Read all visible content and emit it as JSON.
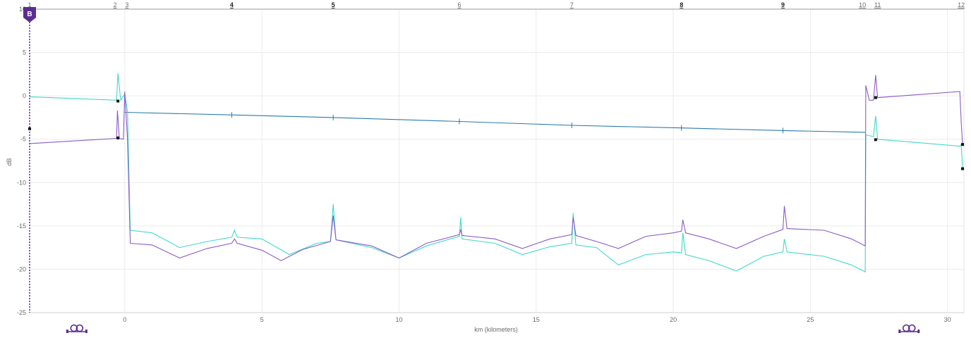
{
  "chart_data": {
    "type": "line",
    "title": "",
    "xlabel": "km (kilometers)",
    "ylabel": "dB",
    "xlim": [
      -3.47,
      30.6
    ],
    "ylim": [
      -25,
      10
    ],
    "x_ticks": [
      0,
      5,
      10,
      15,
      20,
      25,
      30
    ],
    "y_ticks": [
      10,
      5,
      0,
      -5,
      -10,
      -15,
      -20,
      -25
    ],
    "grid": true,
    "colors": {
      "series_a": "#3fd9c8",
      "series_b": "#8a5cc8",
      "series_c": "#2a79a8",
      "marker": "#5b2d91"
    },
    "cursor": {
      "label": "B",
      "x": -3.47
    },
    "events": [
      {
        "label": "1",
        "x": -3.47,
        "bold": false
      },
      {
        "label": "2",
        "x": -0.25,
        "bold": false
      },
      {
        "label": "3",
        "x": 0.0,
        "bold": false
      },
      {
        "label": "4",
        "x": 3.9,
        "bold": true
      },
      {
        "label": "5",
        "x": 7.6,
        "bold": true
      },
      {
        "label": "6",
        "x": 12.2,
        "bold": false
      },
      {
        "label": "7",
        "x": 16.3,
        "bold": false
      },
      {
        "label": "8",
        "x": 20.3,
        "bold": true
      },
      {
        "label": "9",
        "x": 24.0,
        "bold": true
      },
      {
        "label": "10",
        "x": 27.0,
        "bold": false
      },
      {
        "label": "11",
        "x": 27.35,
        "bold": false
      },
      {
        "label": "12",
        "x": 30.5,
        "bold": false
      }
    ],
    "connectors": [
      {
        "x": -1.75,
        "icon": "reel-icon"
      },
      {
        "x": 28.6,
        "icon": "reel-icon"
      }
    ],
    "series": [
      {
        "key": "series_c",
        "points": [
          [
            0,
            -1.9
          ],
          [
            3.9,
            -2.2
          ],
          [
            7.6,
            -2.5
          ],
          [
            12.2,
            -2.95
          ],
          [
            16.3,
            -3.4
          ],
          [
            20.3,
            -3.7
          ],
          [
            24.0,
            -4.0
          ],
          [
            27.0,
            -4.2
          ]
        ],
        "ticks": [
          3.9,
          7.6,
          12.2,
          16.3,
          20.3,
          24.0
        ]
      },
      {
        "key": "series_a",
        "points": [
          [
            -3.47,
            -0.1
          ],
          [
            -0.3,
            -0.5
          ],
          [
            -0.25,
            2.6
          ],
          [
            -0.15,
            -0.5
          ],
          [
            0.0,
            0.2
          ],
          [
            0.1,
            -1.8
          ],
          [
            0.2,
            -15.5
          ],
          [
            1.0,
            -15.8
          ],
          [
            2.0,
            -17.5
          ],
          [
            3.0,
            -16.8
          ],
          [
            3.9,
            -16.3
          ],
          [
            4.0,
            -15.5
          ],
          [
            4.1,
            -16.3
          ],
          [
            5.0,
            -16.5
          ],
          [
            6.0,
            -18.3
          ],
          [
            7.0,
            -17.0
          ],
          [
            7.5,
            -16.8
          ],
          [
            7.6,
            -12.5
          ],
          [
            7.7,
            -16.6
          ],
          [
            9.0,
            -17.5
          ],
          [
            10.0,
            -18.7
          ],
          [
            11.0,
            -17.3
          ],
          [
            12.2,
            -16.2
          ],
          [
            12.25,
            -14.0
          ],
          [
            12.3,
            -16.5
          ],
          [
            13.5,
            -17.0
          ],
          [
            14.5,
            -18.3
          ],
          [
            15.5,
            -17.4
          ],
          [
            16.3,
            -17.0
          ],
          [
            16.35,
            -13.5
          ],
          [
            16.45,
            -17.2
          ],
          [
            17.2,
            -17.5
          ],
          [
            18.0,
            -19.5
          ],
          [
            19.0,
            -18.3
          ],
          [
            20.0,
            -18.0
          ],
          [
            20.3,
            -18.1
          ],
          [
            20.35,
            -15.8
          ],
          [
            20.45,
            -18.3
          ],
          [
            21.3,
            -19.0
          ],
          [
            22.3,
            -20.2
          ],
          [
            23.3,
            -18.5
          ],
          [
            24.0,
            -18.0
          ],
          [
            24.05,
            -16.5
          ],
          [
            24.15,
            -18.0
          ],
          [
            25.5,
            -18.5
          ],
          [
            26.5,
            -19.5
          ],
          [
            27.0,
            -20.3
          ],
          [
            27.02,
            -4.5
          ],
          [
            27.3,
            -4.7
          ],
          [
            27.38,
            -2.3
          ],
          [
            27.45,
            -5.0
          ],
          [
            30.45,
            -5.8
          ],
          [
            30.5,
            -5.6
          ],
          [
            30.55,
            -8.3
          ]
        ]
      },
      {
        "key": "series_b",
        "points": [
          [
            -3.47,
            -5.5
          ],
          [
            -0.3,
            -4.9
          ],
          [
            -0.27,
            -1.7
          ],
          [
            -0.2,
            -4.9
          ],
          [
            -0.05,
            -5.0
          ],
          [
            0.0,
            0.5
          ],
          [
            0.1,
            -5.0
          ],
          [
            0.2,
            -17.0
          ],
          [
            1.0,
            -17.2
          ],
          [
            2.0,
            -18.7
          ],
          [
            3.0,
            -17.6
          ],
          [
            3.9,
            -17.0
          ],
          [
            4.0,
            -16.5
          ],
          [
            4.1,
            -17.0
          ],
          [
            5.0,
            -17.8
          ],
          [
            5.7,
            -19.0
          ],
          [
            6.5,
            -17.7
          ],
          [
            7.5,
            -16.8
          ],
          [
            7.6,
            -13.8
          ],
          [
            7.7,
            -16.6
          ],
          [
            9.0,
            -17.3
          ],
          [
            10.0,
            -18.7
          ],
          [
            11.0,
            -17.0
          ],
          [
            12.2,
            -16.0
          ],
          [
            12.25,
            -15.4
          ],
          [
            12.3,
            -16.1
          ],
          [
            13.5,
            -16.5
          ],
          [
            14.5,
            -17.6
          ],
          [
            15.5,
            -16.5
          ],
          [
            16.3,
            -16.0
          ],
          [
            16.35,
            -14.0
          ],
          [
            16.45,
            -16.1
          ],
          [
            17.2,
            -16.8
          ],
          [
            18.0,
            -17.6
          ],
          [
            19.0,
            -16.2
          ],
          [
            20.0,
            -15.8
          ],
          [
            20.3,
            -15.6
          ],
          [
            20.35,
            -14.3
          ],
          [
            20.45,
            -15.8
          ],
          [
            21.3,
            -16.5
          ],
          [
            22.3,
            -17.6
          ],
          [
            23.3,
            -16.2
          ],
          [
            24.0,
            -15.4
          ],
          [
            24.05,
            -12.7
          ],
          [
            24.15,
            -15.3
          ],
          [
            25.5,
            -15.5
          ],
          [
            26.5,
            -16.5
          ],
          [
            27.0,
            -17.3
          ],
          [
            27.02,
            1.2
          ],
          [
            27.15,
            -0.5
          ],
          [
            27.3,
            -0.5
          ],
          [
            27.38,
            2.4
          ],
          [
            27.45,
            -0.2
          ],
          [
            30.45,
            0.5
          ],
          [
            30.5,
            -3.0
          ],
          [
            30.55,
            -5.7
          ]
        ]
      }
    ]
  }
}
